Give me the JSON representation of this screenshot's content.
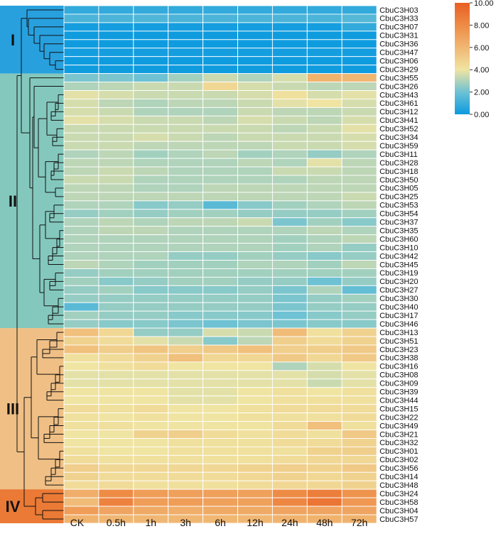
{
  "chart_data": {
    "type": "heatmap",
    "columns": [
      "CK",
      "0.5h",
      "1h",
      "3h",
      "6h",
      "12h",
      "24h",
      "48h",
      "72h"
    ],
    "rows": [
      "CbuC3H03",
      "CbuC3H33",
      "CbuC3H07",
      "CbuC3H31",
      "CbuC3H36",
      "CbuC3H47",
      "CbuC3H06",
      "CbuC3H29",
      "CbuC3H55",
      "CbuC3H26",
      "CbuC3H43",
      "CbuC3H61",
      "CbuC3H12",
      "CbuC3H41",
      "CbuC3H52",
      "CbuC3H34",
      "CbuC3H59",
      "CbuC3H11",
      "CbuC3H28",
      "CbuC3H18",
      "CbuC3H50",
      "CbuC3H05",
      "CbuC3H25",
      "CbuC3H53",
      "CbuC3H54",
      "CbuC3H37",
      "CbuC3H35",
      "CbuC3H60",
      "CbuC3H10",
      "CbuC3H42",
      "CbuC3H45",
      "CbuC3H19",
      "CbuC3H20",
      "CbuC3H27",
      "CbuC3H30",
      "CbuC3H40",
      "CbuC3H17",
      "CbuC3H46",
      "CbuC3H13",
      "CbuC3H51",
      "CbuC3H23",
      "CbuC3H38",
      "CbuC3H16",
      "CbuC3H08",
      "CbuC3H09",
      "CbuC3H39",
      "CbuC3H44",
      "CbuC3H15",
      "CbuC3H22",
      "CbuC3H49",
      "CbuC3H21",
      "CbuC3H32",
      "CbuC3H01",
      "CbuC3H02",
      "CbuC3H56",
      "CbuC3H14",
      "CbuC3H48",
      "CbuC3H24",
      "CbuC3H58",
      "CbuC3H04",
      "CbuC3H57"
    ],
    "values": [
      [
        0.8,
        0.8,
        0.8,
        0.8,
        0.8,
        0.8,
        0.8,
        0.8,
        0.8
      ],
      [
        1.3,
        1.3,
        1.4,
        1.3,
        1.3,
        1.3,
        1.3,
        1.3,
        1.5
      ],
      [
        0.2,
        0.2,
        0.2,
        0.2,
        0.2,
        0.2,
        0.2,
        0.2,
        0.8
      ],
      [
        0.1,
        0.1,
        0.1,
        0.1,
        0.1,
        0.1,
        0.1,
        0.1,
        0.1
      ],
      [
        0.1,
        0.1,
        0.1,
        0.1,
        0.1,
        0.1,
        0.1,
        0.1,
        0.1
      ],
      [
        0.2,
        0.2,
        0.2,
        0.2,
        0.2,
        0.2,
        0.2,
        0.2,
        0.2
      ],
      [
        0.1,
        0.1,
        0.1,
        0.1,
        0.1,
        0.1,
        0.1,
        0.1,
        0.1
      ],
      [
        0.1,
        0.1,
        0.1,
        0.1,
        0.1,
        0.1,
        0.1,
        0.1,
        0.1
      ],
      [
        2.2,
        2.2,
        2.0,
        2.8,
        3.4,
        3.0,
        3.6,
        6.2,
        6.0
      ],
      [
        3.0,
        3.2,
        3.4,
        3.4,
        4.6,
        3.6,
        3.4,
        3.2,
        3.2
      ],
      [
        3.8,
        3.6,
        3.4,
        3.4,
        3.4,
        3.6,
        4.2,
        3.6,
        3.8
      ],
      [
        3.6,
        3.2,
        3.0,
        3.2,
        3.2,
        3.4,
        3.8,
        4.0,
        3.6
      ],
      [
        3.6,
        3.4,
        3.0,
        3.0,
        3.0,
        3.4,
        3.2,
        3.2,
        3.4
      ],
      [
        3.8,
        3.6,
        3.4,
        3.4,
        3.2,
        3.6,
        3.4,
        3.2,
        3.6
      ],
      [
        3.4,
        3.4,
        3.4,
        3.4,
        3.4,
        3.4,
        3.2,
        3.4,
        3.8
      ],
      [
        3.4,
        3.4,
        3.6,
        3.4,
        3.2,
        3.4,
        3.4,
        3.4,
        3.6
      ],
      [
        3.4,
        3.4,
        3.2,
        3.2,
        3.2,
        3.2,
        3.4,
        3.4,
        3.6
      ],
      [
        3.0,
        3.2,
        2.8,
        3.0,
        3.2,
        2.8,
        3.0,
        2.6,
        3.0
      ],
      [
        3.2,
        3.2,
        3.0,
        3.0,
        3.0,
        3.2,
        3.0,
        3.8,
        3.2
      ],
      [
        3.2,
        3.4,
        3.2,
        3.0,
        3.0,
        3.0,
        3.4,
        3.4,
        3.2
      ],
      [
        3.4,
        3.4,
        3.0,
        3.0,
        3.0,
        3.0,
        3.0,
        3.2,
        3.2
      ],
      [
        3.2,
        3.2,
        3.0,
        3.0,
        3.2,
        3.2,
        3.2,
        3.2,
        3.2
      ],
      [
        3.2,
        3.2,
        3.2,
        3.2,
        3.2,
        3.2,
        3.2,
        3.2,
        3.4
      ],
      [
        3.0,
        3.0,
        2.4,
        2.6,
        1.6,
        2.4,
        2.8,
        3.0,
        3.2
      ],
      [
        2.6,
        2.8,
        2.6,
        2.8,
        2.8,
        2.6,
        2.6,
        2.6,
        2.8
      ],
      [
        3.0,
        3.2,
        3.0,
        3.2,
        3.2,
        3.4,
        2.2,
        2.8,
        2.4
      ],
      [
        3.0,
        3.2,
        3.2,
        3.0,
        3.0,
        3.0,
        3.0,
        3.2,
        3.0
      ],
      [
        3.0,
        3.0,
        3.0,
        3.0,
        3.0,
        3.0,
        2.8,
        3.0,
        3.2
      ],
      [
        3.0,
        3.0,
        3.0,
        3.0,
        3.0,
        3.0,
        2.8,
        3.0,
        2.6
      ],
      [
        3.0,
        3.0,
        3.0,
        2.6,
        2.6,
        2.8,
        2.6,
        2.4,
        2.6
      ],
      [
        3.2,
        3.0,
        2.8,
        2.8,
        2.8,
        3.0,
        3.0,
        2.8,
        3.2
      ],
      [
        2.6,
        2.8,
        2.8,
        2.8,
        2.8,
        2.8,
        2.8,
        2.8,
        2.8
      ],
      [
        2.8,
        2.4,
        2.6,
        2.8,
        2.8,
        2.6,
        2.6,
        2.0,
        2.6
      ],
      [
        2.6,
        2.8,
        2.4,
        2.4,
        2.4,
        2.6,
        2.2,
        3.0,
        1.8
      ],
      [
        2.6,
        2.6,
        2.6,
        2.6,
        2.6,
        2.6,
        2.2,
        2.6,
        2.8
      ],
      [
        1.6,
        2.6,
        2.6,
        2.6,
        2.6,
        2.6,
        2.2,
        2.6,
        2.6
      ],
      [
        2.8,
        2.6,
        2.6,
        2.4,
        2.4,
        2.4,
        2.0,
        2.4,
        2.6
      ],
      [
        2.6,
        2.4,
        2.4,
        2.2,
        2.0,
        2.2,
        2.2,
        2.4,
        2.4
      ],
      [
        5.6,
        4.6,
        2.6,
        2.6,
        3.6,
        3.4,
        5.8,
        4.2,
        4.8
      ],
      [
        4.8,
        4.4,
        3.8,
        3.4,
        2.4,
        3.2,
        5.0,
        4.4,
        4.8
      ],
      [
        5.6,
        5.0,
        5.4,
        5.0,
        5.2,
        5.6,
        5.0,
        5.0,
        5.2
      ],
      [
        4.2,
        4.4,
        4.8,
        5.6,
        4.6,
        4.6,
        5.2,
        4.6,
        5.2
      ],
      [
        4.0,
        4.2,
        4.4,
        4.0,
        4.0,
        4.0,
        3.0,
        3.6,
        4.0
      ],
      [
        3.8,
        3.8,
        3.8,
        3.8,
        3.8,
        3.8,
        3.8,
        3.6,
        3.8
      ],
      [
        3.8,
        3.8,
        3.8,
        3.8,
        3.8,
        3.8,
        3.8,
        3.4,
        3.8
      ],
      [
        4.0,
        4.0,
        4.0,
        3.8,
        3.8,
        4.0,
        4.2,
        4.0,
        4.2
      ],
      [
        4.0,
        4.0,
        4.0,
        3.8,
        3.8,
        4.0,
        4.2,
        4.2,
        4.2
      ],
      [
        4.4,
        4.2,
        4.4,
        4.0,
        4.0,
        4.2,
        4.4,
        4.4,
        4.4
      ],
      [
        4.2,
        4.0,
        4.2,
        4.0,
        4.0,
        4.2,
        4.2,
        4.2,
        4.4
      ],
      [
        4.2,
        4.2,
        4.0,
        4.0,
        4.0,
        4.0,
        4.4,
        5.6,
        4.2
      ],
      [
        4.0,
        4.0,
        4.8,
        5.0,
        4.4,
        4.2,
        4.4,
        4.2,
        5.2
      ],
      [
        4.0,
        4.0,
        4.0,
        4.2,
        4.2,
        4.2,
        4.4,
        4.4,
        4.8
      ],
      [
        4.2,
        4.0,
        4.0,
        4.2,
        4.2,
        4.2,
        4.2,
        4.8,
        5.0
      ],
      [
        4.4,
        4.2,
        4.2,
        4.2,
        4.2,
        4.2,
        4.4,
        4.6,
        4.6
      ],
      [
        5.0,
        4.6,
        4.6,
        4.6,
        4.6,
        4.8,
        5.0,
        4.8,
        5.2
      ],
      [
        4.8,
        4.4,
        4.4,
        4.4,
        4.4,
        4.6,
        4.8,
        4.6,
        4.8
      ],
      [
        4.4,
        4.4,
        4.2,
        4.2,
        4.2,
        4.4,
        4.6,
        4.6,
        4.8
      ],
      [
        6.4,
        8.0,
        7.2,
        7.0,
        7.0,
        7.0,
        8.0,
        8.6,
        7.6
      ],
      [
        5.8,
        8.4,
        7.2,
        7.2,
        7.0,
        7.0,
        8.2,
        9.0,
        7.4
      ],
      [
        7.2,
        6.8,
        6.6,
        6.4,
        6.6,
        6.6,
        6.8,
        6.8,
        6.8
      ],
      [
        6.2,
        6.0,
        6.0,
        6.0,
        6.0,
        6.0,
        6.2,
        6.2,
        6.2
      ]
    ],
    "clusters": [
      {
        "label": "I",
        "start": 0,
        "end": 7,
        "color": "#28a0de"
      },
      {
        "label": "II",
        "start": 8,
        "end": 37,
        "color": "#84c8bd"
      },
      {
        "label": "III",
        "start": 38,
        "end": 56,
        "color": "#efbf85"
      },
      {
        "label": "IV",
        "start": 57,
        "end": 60,
        "color": "#ea7a35"
      }
    ],
    "colorbar": {
      "min": 0,
      "max": 10,
      "ticks": [
        "0.00",
        "2.00",
        "4.00",
        "6.00",
        "8.00",
        "10.00"
      ],
      "stops": [
        {
          "v": 0,
          "c": "#0a9ae0"
        },
        {
          "v": 2,
          "c": "#6ec2d3"
        },
        {
          "v": 4,
          "c": "#f0e4a2"
        },
        {
          "v": 6,
          "c": "#f0b773"
        },
        {
          "v": 8,
          "c": "#ee8b45"
        },
        {
          "v": 10,
          "c": "#e85f23"
        }
      ]
    },
    "title": "",
    "xlabel": "",
    "ylabel": ""
  }
}
